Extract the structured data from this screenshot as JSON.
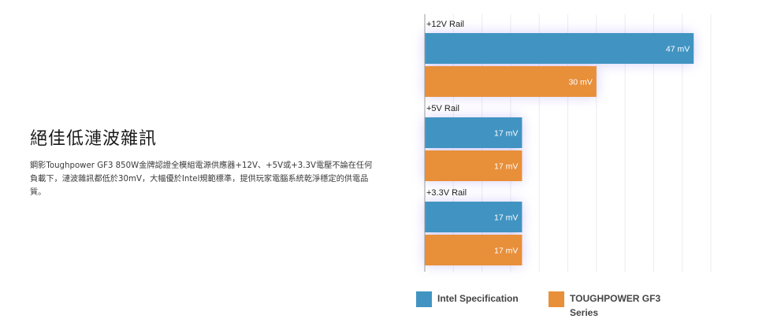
{
  "intro": {
    "title": "絕佳低漣波雜訊",
    "description": "鋼影Toughpower GF3 850W金牌認證全模組電源供應器+12V、+5V或+3.3V電壓不論在任何負載下，漣波雜訊都低於30mV，大幅優於Intel規範標準，提供玩家電腦系統乾淨穩定的供電品質。"
  },
  "chart_data": {
    "type": "bar",
    "orientation": "horizontal",
    "categories": [
      "+12V Rail",
      "+5V Rail",
      "+3.3V Rail"
    ],
    "series": [
      {
        "name": "Intel Specification",
        "values": [
          47,
          17,
          17
        ],
        "labels": [
          "47 mV",
          "17 mV",
          "17 mV"
        ],
        "color": "#4194c2"
      },
      {
        "name": "TOUGHPOWER GF3 Series",
        "values": [
          30,
          17,
          17
        ],
        "labels": [
          "30 mV",
          "17 mV",
          "17 mV"
        ],
        "color": "#e88f3a"
      }
    ],
    "xlim": [
      0,
      50
    ],
    "grid": true,
    "legend_position": "bottom",
    "glow_color": "#8a7bf0"
  }
}
